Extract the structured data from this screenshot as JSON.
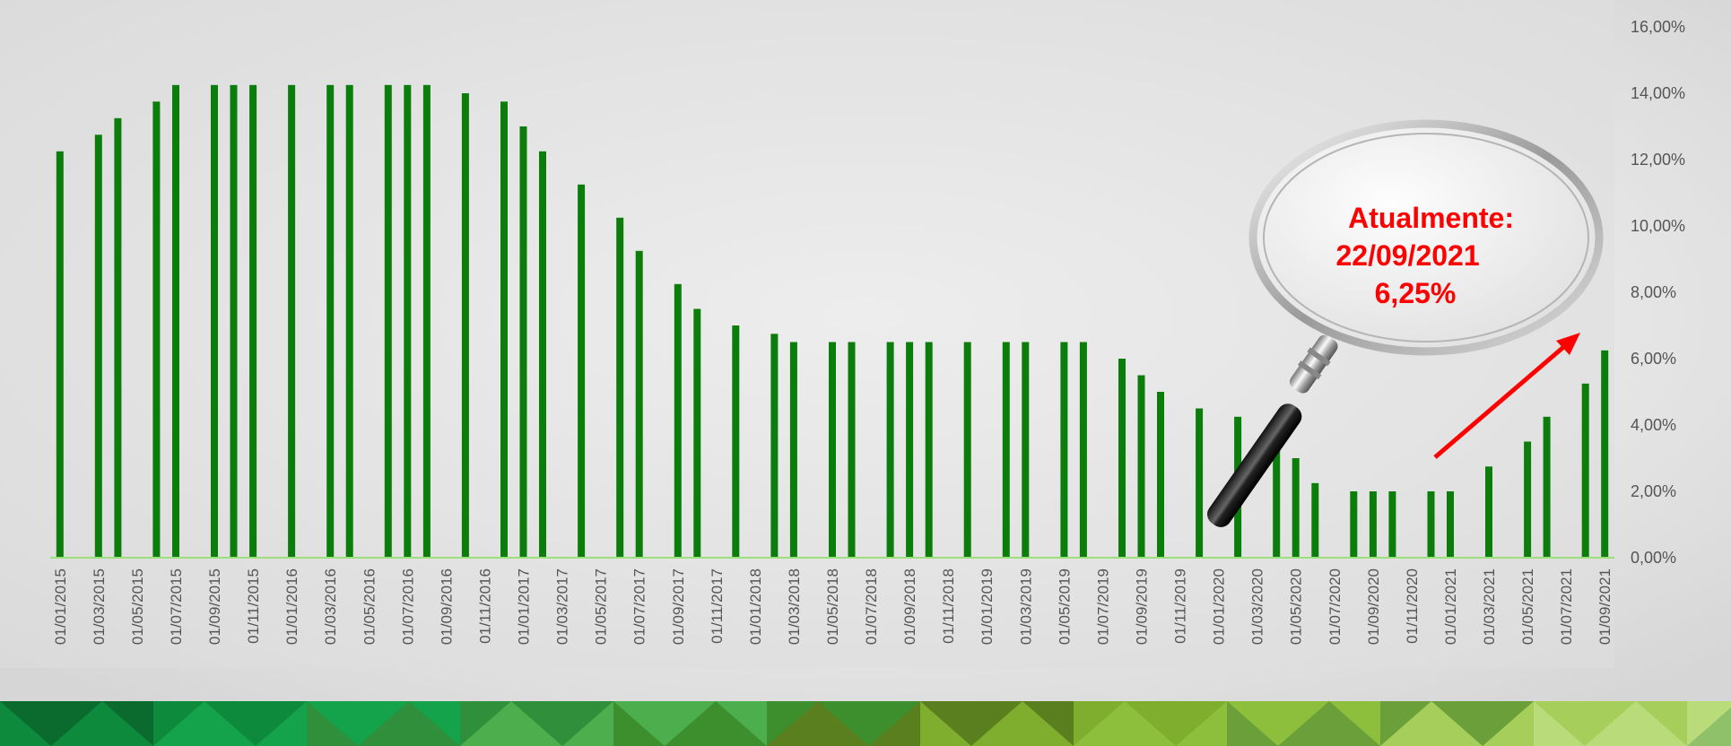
{
  "chart_data": {
    "type": "bar",
    "x": [
      "01/01/2015",
      "01/02/2015",
      "01/03/2015",
      "01/04/2015",
      "01/05/2015",
      "01/06/2015",
      "01/07/2015",
      "01/08/2015",
      "01/09/2015",
      "01/10/2015",
      "01/11/2015",
      "01/12/2015",
      "01/01/2016",
      "01/02/2016",
      "01/03/2016",
      "01/04/2016",
      "01/05/2016",
      "01/06/2016",
      "01/07/2016",
      "01/08/2016",
      "01/09/2016",
      "01/10/2016",
      "01/11/2016",
      "01/12/2016",
      "01/01/2017",
      "01/02/2017",
      "01/03/2017",
      "01/04/2017",
      "01/05/2017",
      "01/06/2017",
      "01/07/2017",
      "01/08/2017",
      "01/09/2017",
      "01/10/2017",
      "01/11/2017",
      "01/12/2017",
      "01/01/2018",
      "01/02/2018",
      "01/03/2018",
      "01/04/2018",
      "01/05/2018",
      "01/06/2018",
      "01/07/2018",
      "01/08/2018",
      "01/09/2018",
      "01/10/2018",
      "01/11/2018",
      "01/12/2018",
      "01/01/2019",
      "01/02/2019",
      "01/03/2019",
      "01/04/2019",
      "01/05/2019",
      "01/06/2019",
      "01/07/2019",
      "01/08/2019",
      "01/09/2019",
      "01/10/2019",
      "01/11/2019",
      "01/12/2019",
      "01/01/2020",
      "01/02/2020",
      "01/03/2020",
      "01/04/2020",
      "01/05/2020",
      "01/06/2020",
      "01/07/2020",
      "01/08/2020",
      "01/09/2020",
      "01/10/2020",
      "01/11/2020",
      "01/12/2020",
      "01/01/2021",
      "01/02/2021",
      "01/03/2021",
      "01/04/2021",
      "01/05/2021",
      "01/06/2021",
      "01/07/2021",
      "01/08/2021",
      "01/09/2021"
    ],
    "tick_labels": [
      "01/01/2015",
      "01/03/2015",
      "01/05/2015",
      "01/07/2015",
      "01/09/2015",
      "01/11/2015",
      "01/01/2016",
      "01/03/2016",
      "01/05/2016",
      "01/07/2016",
      "01/09/2016",
      "01/11/2016",
      "01/01/2017",
      "01/03/2017",
      "01/05/2017",
      "01/07/2017",
      "01/09/2017",
      "01/11/2017",
      "01/01/2018",
      "01/03/2018",
      "01/05/2018",
      "01/07/2018",
      "01/09/2018",
      "01/11/2018",
      "01/01/2019",
      "01/03/2019",
      "01/05/2019",
      "01/07/2019",
      "01/09/2019",
      "01/11/2019",
      "01/01/2020",
      "01/03/2020",
      "01/05/2020",
      "01/07/2020",
      "01/09/2020",
      "01/11/2020",
      "01/01/2021",
      "01/03/2021",
      "01/05/2021",
      "01/07/2021",
      "01/09/2021"
    ],
    "values": [
      12.25,
      null,
      12.75,
      13.25,
      null,
      13.75,
      14.25,
      null,
      14.25,
      14.25,
      14.25,
      null,
      14.25,
      null,
      14.25,
      14.25,
      null,
      14.25,
      14.25,
      14.25,
      null,
      14.0,
      null,
      13.75,
      13.0,
      12.25,
      null,
      11.25,
      null,
      10.25,
      9.25,
      null,
      8.25,
      7.5,
      null,
      7.0,
      null,
      6.75,
      6.5,
      null,
      6.5,
      6.5,
      null,
      6.5,
      6.5,
      6.5,
      null,
      6.5,
      null,
      6.5,
      6.5,
      null,
      6.5,
      6.5,
      null,
      6.0,
      5.5,
      5.0,
      null,
      4.5,
      null,
      4.25,
      null,
      3.75,
      3.0,
      2.25,
      null,
      2.0,
      2.0,
      2.0,
      null,
      2.0,
      2.0,
      null,
      2.75,
      null,
      3.5,
      4.25,
      null,
      5.25,
      6.25
    ],
    "ylim": [
      0,
      16
    ],
    "y_ticks": [
      "0,00%",
      "2,00%",
      "4,00%",
      "6,00%",
      "8,00%",
      "10,00%",
      "12,00%",
      "14,00%",
      "16,00%"
    ],
    "y_axis_side": "right",
    "grid": false,
    "bar_color": "#0a7d0a",
    "annotation": {
      "lines": [
        "Atualmente:",
        "22/09/2021",
        "6,25%"
      ],
      "color": "#ff0000"
    }
  },
  "colors": {
    "background": "#ececec",
    "axis_line": "#9be07a",
    "tick_text": "#555555",
    "arrow": "#ff0000"
  }
}
